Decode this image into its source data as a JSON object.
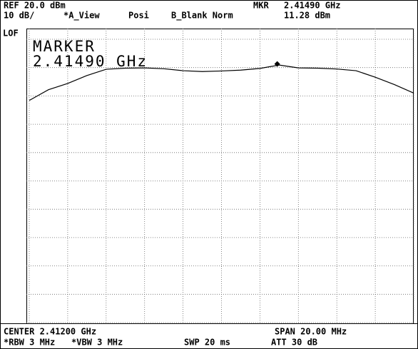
{
  "header": {
    "ref": "REF 20.0 dBm",
    "scale": "10 dB/",
    "a_view": "*A_View",
    "posi": "Posi",
    "b_blank": "B_Blank Norm",
    "mkr": "MKR",
    "mkr_freq": "2.41490 GHz",
    "mkr_level": "11.28 dBm",
    "lof": "LOF"
  },
  "footer": {
    "center": "CENTER 2.41200 GHz",
    "span": "SPAN 20.00 MHz",
    "rbw": "*RBW 3 MHz",
    "vbw": "*VBW 3 MHz",
    "swp": "SWP 20 ms",
    "att": "ATT 30 dB"
  },
  "chart_data": {
    "type": "line",
    "annotations": [
      "MARKER",
      "2.41490 GHz"
    ],
    "x": [
      2.402,
      2.403,
      2.404,
      2.405,
      2.406,
      2.407,
      2.408,
      2.409,
      2.41,
      2.411,
      2.412,
      2.413,
      2.414,
      2.415,
      2.416,
      2.417,
      2.418,
      2.419,
      2.42,
      2.421,
      2.422
    ],
    "series": [
      {
        "name": "A_View",
        "color": "#000000",
        "values": [
          -1.6,
          2.2,
          4.4,
          7.2,
          9.4,
          9.8,
          9.9,
          9.6,
          8.9,
          8.6,
          8.8,
          9.1,
          9.7,
          10.9,
          9.9,
          9.8,
          9.5,
          8.9,
          6.6,
          4.0,
          1.0
        ]
      }
    ],
    "marker": {
      "x": 2.4149,
      "value": 11.28
    },
    "xlim": [
      2.402,
      2.422
    ],
    "ylim": [
      -80,
      20
    ],
    "xticks": [
      2.402,
      2.404,
      2.406,
      2.408,
      2.41,
      2.412,
      2.414,
      2.416,
      2.418,
      2.42,
      2.422
    ],
    "yticks": [
      20,
      10,
      0,
      -10,
      -20,
      -30,
      -40,
      -50,
      -60,
      -70,
      -80
    ],
    "grid": true
  }
}
